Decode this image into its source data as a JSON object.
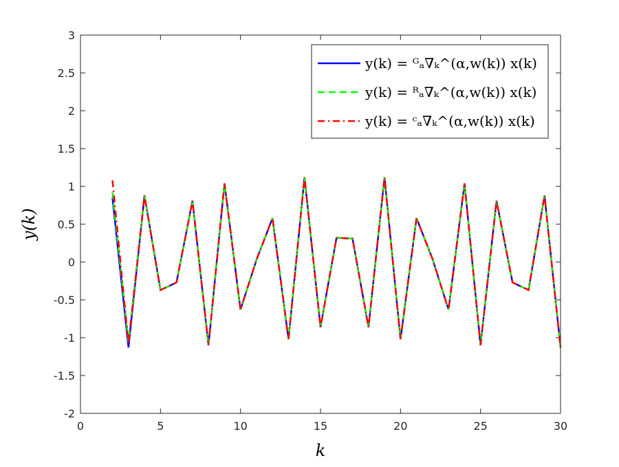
{
  "chart_data": {
    "type": "line",
    "xlabel": "k",
    "ylabel": "y(k)",
    "x": [
      2,
      3,
      4,
      5,
      6,
      7,
      8,
      9,
      10,
      11,
      12,
      13,
      14,
      15,
      16,
      17,
      18,
      19,
      20,
      21,
      22,
      23,
      24,
      25,
      26,
      27,
      28,
      29,
      30
    ],
    "series": [
      {
        "name": "y(k) = ᴳₐ∇ₖ^(α,w(k)) x(k)",
        "color": "#0000ff",
        "linestyle": "-",
        "values": [
          0.85,
          -1.13,
          0.88,
          -0.37,
          -0.27,
          0.81,
          -1.1,
          1.04,
          -0.63,
          0.03,
          0.58,
          -1.02,
          1.12,
          -0.86,
          0.32,
          0.31,
          -0.86,
          1.12,
          -1.02,
          0.58,
          0.04,
          -0.63,
          1.04,
          -1.1,
          0.81,
          -0.27,
          -0.37,
          0.88,
          -1.13
        ]
      },
      {
        "name": "y(k) = ᴿₐ∇ₖ^(α,w(k)) x(k)",
        "color": "#00ff00",
        "linestyle": "--",
        "values": [
          0.92,
          -1.05,
          0.88,
          -0.37,
          -0.27,
          0.81,
          -1.1,
          1.04,
          -0.63,
          0.03,
          0.58,
          -1.02,
          1.12,
          -0.86,
          0.32,
          0.31,
          -0.86,
          1.12,
          -1.02,
          0.58,
          0.04,
          -0.63,
          1.04,
          -1.1,
          0.81,
          -0.27,
          -0.37,
          0.88,
          -1.13
        ]
      },
      {
        "name": "y(k) = ᶜₐ∇ₖ^(α,w(k)) x(k)",
        "color": "#ff0000",
        "linestyle": "-.",
        "values": [
          1.08,
          -1.08,
          0.88,
          -0.37,
          -0.27,
          0.81,
          -1.1,
          1.04,
          -0.63,
          0.03,
          0.58,
          -1.02,
          1.12,
          -0.86,
          0.32,
          0.31,
          -0.86,
          1.12,
          -1.02,
          0.58,
          0.04,
          -0.63,
          1.04,
          -1.1,
          0.81,
          -0.27,
          -0.37,
          0.88,
          -1.13
        ]
      }
    ],
    "xlim": [
      0,
      30
    ],
    "xticks": [
      0,
      5,
      10,
      15,
      20,
      25,
      30
    ],
    "ylim": [
      -2,
      3
    ],
    "yticks": [
      -2,
      -1.5,
      -1,
      -0.5,
      0,
      0.5,
      1,
      1.5,
      2,
      2.5,
      3
    ],
    "legend": "upper-right"
  }
}
